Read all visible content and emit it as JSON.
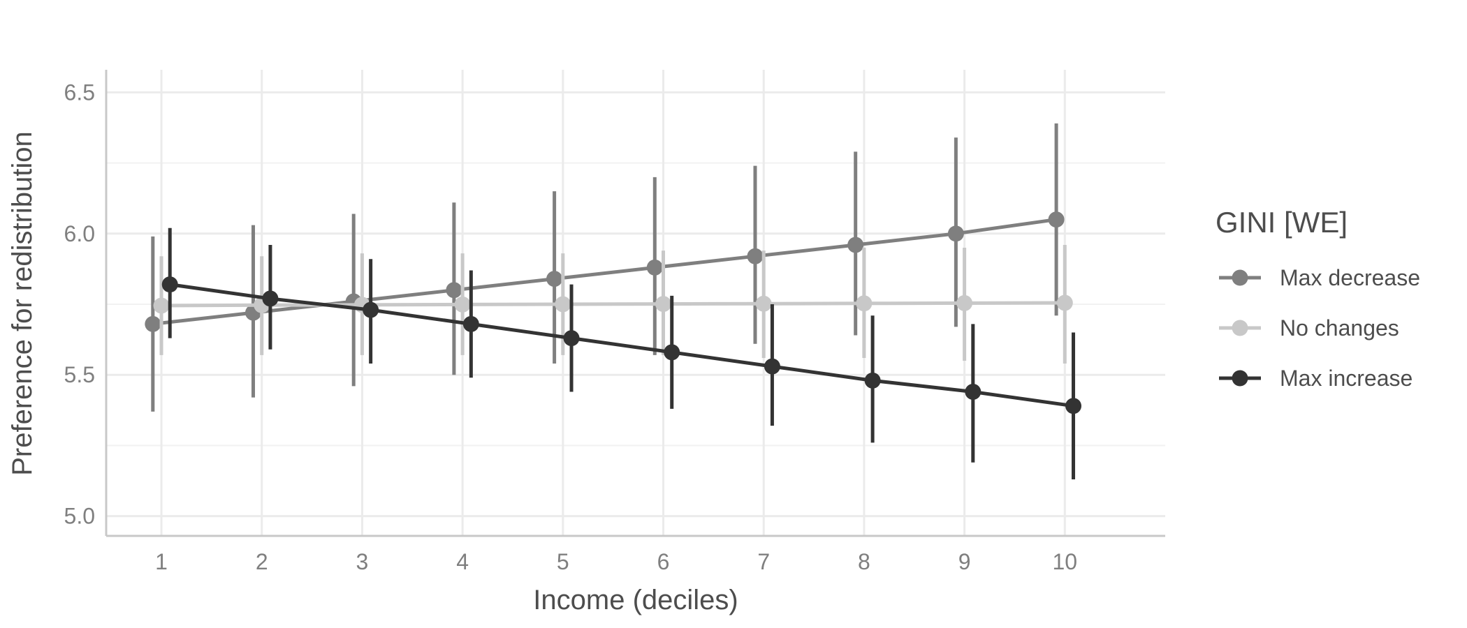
{
  "chart_data": {
    "type": "line",
    "xlabel": "Income (deciles)",
    "ylabel": "Preference for redistribution",
    "x": [
      1,
      2,
      3,
      4,
      5,
      6,
      7,
      8,
      9,
      10
    ],
    "x_ticks": [
      "1",
      "2",
      "3",
      "4",
      "5",
      "6",
      "7",
      "8",
      "9",
      "10"
    ],
    "xlim": [
      0.45,
      11.0
    ],
    "ylim": [
      4.93,
      6.58
    ],
    "y_ticks": [
      "5.0",
      "5.5",
      "6.0",
      "6.5"
    ],
    "y_tick_values": [
      5.0,
      5.5,
      6.0,
      6.5
    ],
    "grid": true,
    "legend": {
      "title": "GINI [WE]",
      "position": "right"
    },
    "series": [
      {
        "name": "Max decrease",
        "color": "#7f7f7f",
        "values": [
          5.68,
          5.72,
          5.76,
          5.8,
          5.84,
          5.88,
          5.92,
          5.96,
          6.0,
          6.05
        ],
        "lower": [
          5.37,
          5.42,
          5.46,
          5.5,
          5.54,
          5.57,
          5.61,
          5.64,
          5.67,
          5.71
        ],
        "upper": [
          5.99,
          6.03,
          6.07,
          6.11,
          6.15,
          6.2,
          6.24,
          6.29,
          6.34,
          6.39
        ]
      },
      {
        "name": "No changes",
        "color": "#c8c8c8",
        "values": [
          5.745,
          5.747,
          5.748,
          5.749,
          5.75,
          5.751,
          5.752,
          5.753,
          5.754,
          5.755
        ],
        "lower": [
          5.57,
          5.57,
          5.57,
          5.57,
          5.57,
          5.57,
          5.56,
          5.56,
          5.55,
          5.54
        ],
        "upper": [
          5.92,
          5.92,
          5.93,
          5.93,
          5.93,
          5.94,
          5.94,
          5.95,
          5.95,
          5.96
        ]
      },
      {
        "name": "Max increase",
        "color": "#333333",
        "values": [
          5.82,
          5.77,
          5.73,
          5.68,
          5.63,
          5.58,
          5.53,
          5.48,
          5.44,
          5.39
        ],
        "lower": [
          5.63,
          5.59,
          5.54,
          5.49,
          5.44,
          5.38,
          5.32,
          5.26,
          5.19,
          5.13
        ],
        "upper": [
          6.02,
          5.96,
          5.91,
          5.87,
          5.82,
          5.78,
          5.75,
          5.71,
          5.68,
          5.65
        ]
      }
    ]
  }
}
